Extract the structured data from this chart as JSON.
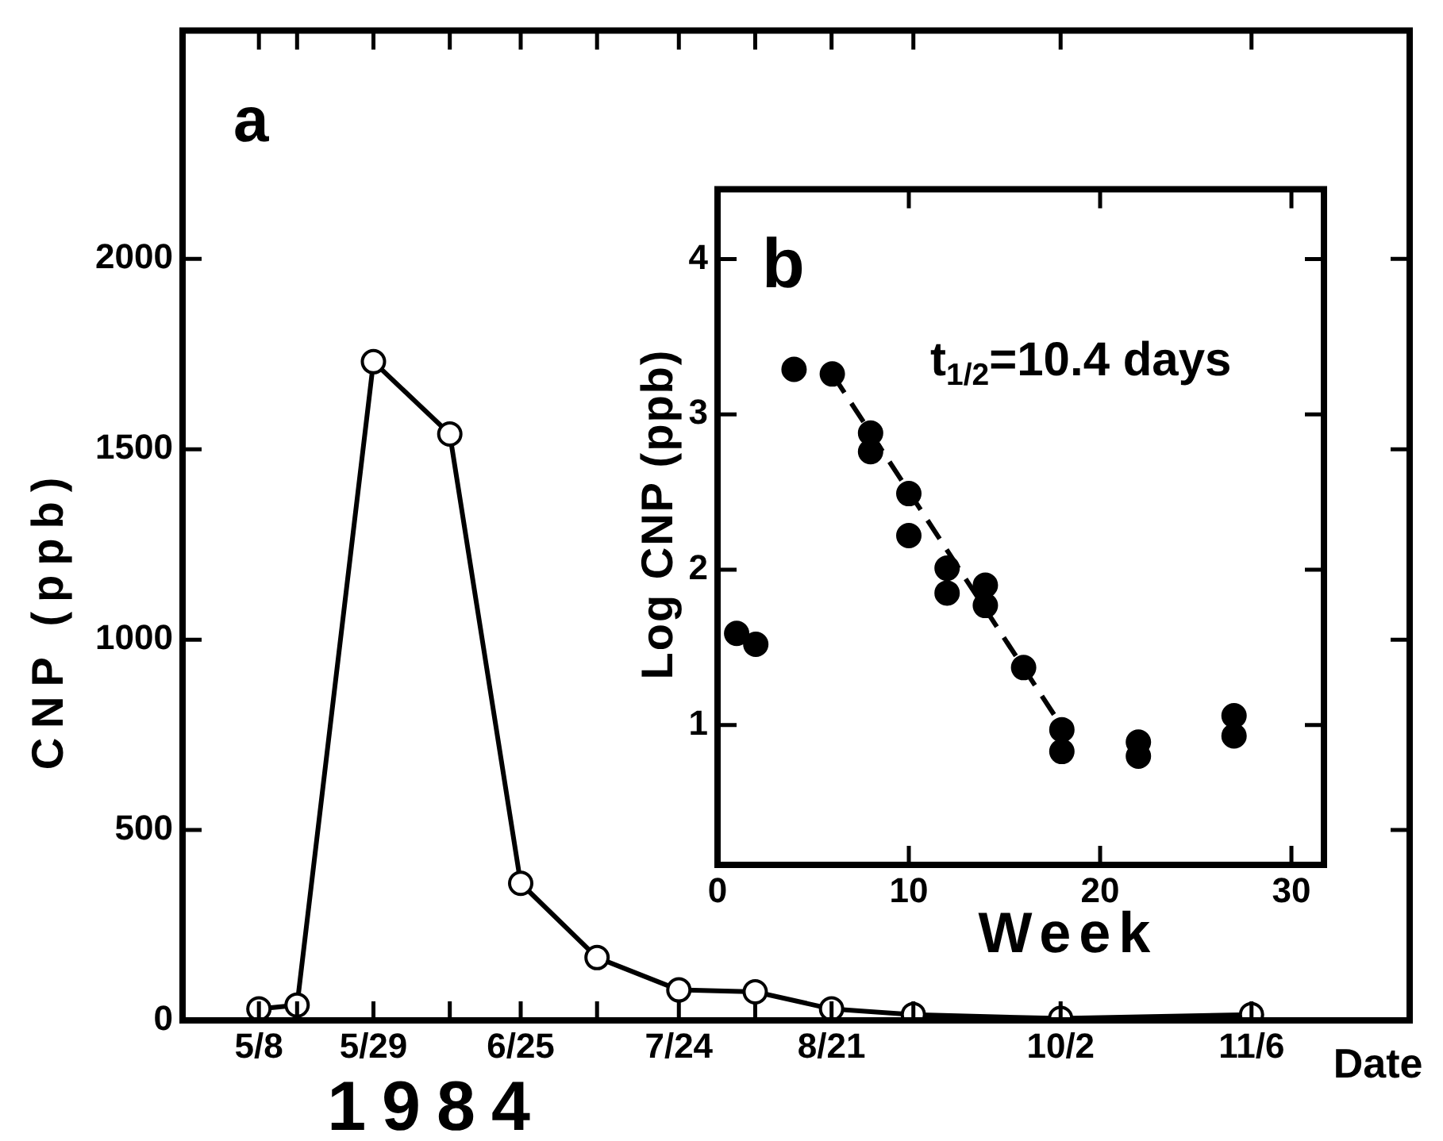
{
  "chart_data": [
    {
      "type": "line",
      "title": "a",
      "xlabel": "Date",
      "ylabel": "CNP (ppb)",
      "annotations": [
        "1984"
      ],
      "x": [
        "1984-05-08",
        "1984-05-15",
        "1984-05-29",
        "1984-06-12",
        "1984-06-25",
        "1984-07-09",
        "1984-07-24",
        "1984-08-07",
        "1984-08-21",
        "1984-09-05",
        "1984-10-02",
        "1984-11-06"
      ],
      "series": [
        {
          "color": "#000000",
          "values": [
            30,
            40,
            1730,
            1540,
            360,
            165,
            80,
            75,
            30,
            15,
            5,
            15
          ]
        }
      ],
      "xlim": [
        "1984-04-24",
        "1984-12-05"
      ],
      "xticks": [
        {
          "value": "1984-05-08",
          "label": "5/8"
        },
        {
          "value": "1984-05-15",
          "label": null
        },
        {
          "value": "1984-05-29",
          "label": "5/29"
        },
        {
          "value": "1984-06-12",
          "label": null
        },
        {
          "value": "1984-06-25",
          "label": "6/25"
        },
        {
          "value": "1984-07-09",
          "label": null
        },
        {
          "value": "1984-07-24",
          "label": "7/24"
        },
        {
          "value": "1984-08-07",
          "label": null
        },
        {
          "value": "1984-08-21",
          "label": "8/21"
        },
        {
          "value": "1984-09-05",
          "label": null
        },
        {
          "value": "1984-10-02",
          "label": "10/2"
        },
        {
          "value": "1984-11-06",
          "label": "11/6"
        }
      ],
      "ylim": [
        0,
        2600
      ],
      "yticks": [
        0,
        500,
        1000,
        1500,
        2000
      ],
      "marker": "circle",
      "line_style": "solid",
      "grid": false,
      "legend": false
    },
    {
      "type": "scatter",
      "title": "b",
      "xlabel": "Week",
      "ylabel": "Log CNP (ppb)",
      "annotations": [
        "t$_{1/2}$=10.4 days"
      ],
      "series": [
        {
          "type": "scatter",
          "color": "#000000",
          "x": [
            1,
            2,
            4,
            6,
            8,
            8,
            10,
            10,
            12,
            12,
            14,
            14,
            16,
            18,
            18,
            22,
            22,
            27,
            27
          ],
          "values": [
            1.59,
            1.52,
            3.29,
            3.26,
            2.88,
            2.76,
            2.49,
            2.22,
            2.01,
            1.85,
            1.9,
            1.77,
            1.37,
            0.97,
            0.83,
            0.89,
            0.8,
            1.06,
            0.93
          ]
        },
        {
          "type": "line",
          "color": "#000000",
          "line_style": "dashed",
          "marker": "none",
          "x": [
            6,
            18
          ],
          "values": [
            3.26,
            0.99
          ]
        }
      ],
      "xlim": [
        0,
        31.7
      ],
      "xticks": [
        0,
        10,
        20,
        30
      ],
      "ylim": [
        0.1,
        4.45
      ],
      "yticks": [
        1,
        2,
        3,
        4
      ],
      "marker": "circle",
      "grid": false,
      "legend": false
    }
  ]
}
